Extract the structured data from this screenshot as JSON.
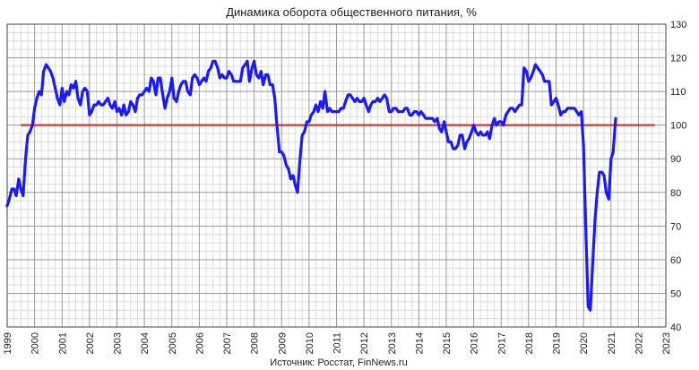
{
  "chart_data": {
    "type": "line",
    "title": "Динамика оборота общественного питания, %",
    "source": "Источник: Росстат, FinNews.ru",
    "xlabel": "",
    "ylabel": "",
    "xlim": [
      1999,
      2023
    ],
    "ylim": [
      40,
      130
    ],
    "x_ticks": [
      "1999",
      "2000",
      "2001",
      "2002",
      "2003",
      "2004",
      "2005",
      "2006",
      "2007",
      "2008",
      "2009",
      "2010",
      "2011",
      "2012",
      "2013",
      "2014",
      "2015",
      "2016",
      "2017",
      "2018",
      "2019",
      "2020",
      "2021",
      "2022",
      "2023"
    ],
    "y_ticks": [
      "40",
      "50",
      "60",
      "70",
      "80",
      "90",
      "100",
      "110",
      "120",
      "130"
    ],
    "grid": true,
    "legend": "none",
    "reference_line": {
      "y": 100,
      "x_from": 1999.5,
      "x_to": 2022.6,
      "color": "#d62020"
    },
    "series": [
      {
        "color": "#1a1aff",
        "points": [
          [
            1999.0,
            76
          ],
          [
            1999.08,
            78
          ],
          [
            1999.17,
            81
          ],
          [
            1999.25,
            81
          ],
          [
            1999.33,
            79
          ],
          [
            1999.42,
            84
          ],
          [
            1999.5,
            81
          ],
          [
            1999.58,
            79
          ],
          [
            1999.67,
            90
          ],
          [
            1999.75,
            97
          ],
          [
            1999.83,
            98
          ],
          [
            1999.92,
            100
          ],
          [
            2000.0,
            105
          ],
          [
            2000.08,
            108
          ],
          [
            2000.17,
            110
          ],
          [
            2000.25,
            109
          ],
          [
            2000.33,
            116
          ],
          [
            2000.42,
            118
          ],
          [
            2000.5,
            117
          ],
          [
            2000.58,
            116
          ],
          [
            2000.67,
            114
          ],
          [
            2000.75,
            111
          ],
          [
            2000.83,
            108
          ],
          [
            2000.92,
            106
          ],
          [
            2001.0,
            111
          ],
          [
            2001.08,
            107
          ],
          [
            2001.17,
            110
          ],
          [
            2001.25,
            109
          ],
          [
            2001.33,
            112
          ],
          [
            2001.42,
            111
          ],
          [
            2001.5,
            113
          ],
          [
            2001.58,
            108
          ],
          [
            2001.67,
            106
          ],
          [
            2001.75,
            110
          ],
          [
            2001.83,
            111
          ],
          [
            2001.92,
            110
          ],
          [
            2002.0,
            103
          ],
          [
            2002.08,
            104
          ],
          [
            2002.17,
            106
          ],
          [
            2002.25,
            106
          ],
          [
            2002.33,
            107
          ],
          [
            2002.42,
            106
          ],
          [
            2002.5,
            106
          ],
          [
            2002.58,
            107
          ],
          [
            2002.67,
            108
          ],
          [
            2002.75,
            106
          ],
          [
            2002.83,
            105
          ],
          [
            2002.92,
            107
          ],
          [
            2003.0,
            104
          ],
          [
            2003.08,
            105
          ],
          [
            2003.17,
            103
          ],
          [
            2003.25,
            106
          ],
          [
            2003.33,
            103
          ],
          [
            2003.42,
            104
          ],
          [
            2003.5,
            107
          ],
          [
            2003.58,
            106
          ],
          [
            2003.67,
            104
          ],
          [
            2003.75,
            108
          ],
          [
            2003.83,
            109
          ],
          [
            2003.92,
            109
          ],
          [
            2004.0,
            110
          ],
          [
            2004.08,
            111
          ],
          [
            2004.17,
            110
          ],
          [
            2004.25,
            114
          ],
          [
            2004.33,
            113
          ],
          [
            2004.42,
            109
          ],
          [
            2004.5,
            114
          ],
          [
            2004.58,
            114
          ],
          [
            2004.67,
            109
          ],
          [
            2004.75,
            105
          ],
          [
            2004.83,
            108
          ],
          [
            2004.92,
            110
          ],
          [
            2005.0,
            114
          ],
          [
            2005.08,
            108
          ],
          [
            2005.17,
            107
          ],
          [
            2005.25,
            110
          ],
          [
            2005.33,
            112
          ],
          [
            2005.42,
            113
          ],
          [
            2005.5,
            113
          ],
          [
            2005.58,
            110
          ],
          [
            2005.67,
            109
          ],
          [
            2005.75,
            114
          ],
          [
            2005.83,
            115
          ],
          [
            2005.92,
            114
          ],
          [
            2006.0,
            112
          ],
          [
            2006.08,
            113
          ],
          [
            2006.17,
            114
          ],
          [
            2006.25,
            113
          ],
          [
            2006.33,
            116
          ],
          [
            2006.42,
            117
          ],
          [
            2006.5,
            119
          ],
          [
            2006.58,
            119
          ],
          [
            2006.67,
            117
          ],
          [
            2006.75,
            114
          ],
          [
            2006.83,
            115
          ],
          [
            2006.92,
            114
          ],
          [
            2007.0,
            114
          ],
          [
            2007.08,
            116
          ],
          [
            2007.17,
            115
          ],
          [
            2007.25,
            113
          ],
          [
            2007.33,
            113
          ],
          [
            2007.42,
            113
          ],
          [
            2007.5,
            113
          ],
          [
            2007.58,
            117
          ],
          [
            2007.67,
            118
          ],
          [
            2007.75,
            119
          ],
          [
            2007.83,
            113
          ],
          [
            2007.92,
            117
          ],
          [
            2008.0,
            119
          ],
          [
            2008.08,
            115
          ],
          [
            2008.17,
            114
          ],
          [
            2008.25,
            116
          ],
          [
            2008.33,
            112
          ],
          [
            2008.42,
            115
          ],
          [
            2008.5,
            115
          ],
          [
            2008.58,
            112
          ],
          [
            2008.67,
            112
          ],
          [
            2008.75,
            108
          ],
          [
            2008.83,
            100
          ],
          [
            2008.92,
            92
          ],
          [
            2009.0,
            92
          ],
          [
            2009.08,
            91
          ],
          [
            2009.17,
            88
          ],
          [
            2009.25,
            87
          ],
          [
            2009.33,
            84
          ],
          [
            2009.42,
            85
          ],
          [
            2009.5,
            82
          ],
          [
            2009.58,
            80
          ],
          [
            2009.67,
            90
          ],
          [
            2009.75,
            97
          ],
          [
            2009.83,
            98
          ],
          [
            2009.92,
            101
          ],
          [
            2010.0,
            101
          ],
          [
            2010.08,
            103
          ],
          [
            2010.17,
            104
          ],
          [
            2010.25,
            106
          ],
          [
            2010.33,
            104
          ],
          [
            2010.42,
            107
          ],
          [
            2010.5,
            105
          ],
          [
            2010.58,
            110
          ],
          [
            2010.67,
            104
          ],
          [
            2010.75,
            105
          ],
          [
            2010.83,
            104
          ],
          [
            2010.92,
            104
          ],
          [
            2011.0,
            104
          ],
          [
            2011.08,
            104
          ],
          [
            2011.17,
            105
          ],
          [
            2011.25,
            105
          ],
          [
            2011.33,
            107
          ],
          [
            2011.42,
            109
          ],
          [
            2011.5,
            109
          ],
          [
            2011.58,
            108
          ],
          [
            2011.67,
            107
          ],
          [
            2011.75,
            108
          ],
          [
            2011.83,
            107
          ],
          [
            2011.92,
            107
          ],
          [
            2012.0,
            108
          ],
          [
            2012.08,
            106
          ],
          [
            2012.17,
            104
          ],
          [
            2012.25,
            106
          ],
          [
            2012.33,
            107
          ],
          [
            2012.42,
            107
          ],
          [
            2012.5,
            108
          ],
          [
            2012.58,
            107
          ],
          [
            2012.67,
            108
          ],
          [
            2012.75,
            109
          ],
          [
            2012.83,
            108
          ],
          [
            2012.92,
            104
          ],
          [
            2013.0,
            104
          ],
          [
            2013.08,
            105
          ],
          [
            2013.17,
            105
          ],
          [
            2013.25,
            104
          ],
          [
            2013.33,
            104
          ],
          [
            2013.42,
            104
          ],
          [
            2013.5,
            105
          ],
          [
            2013.58,
            105
          ],
          [
            2013.67,
            103
          ],
          [
            2013.75,
            103
          ],
          [
            2013.83,
            104
          ],
          [
            2013.92,
            104
          ],
          [
            2014.0,
            103
          ],
          [
            2014.08,
            104
          ],
          [
            2014.17,
            103
          ],
          [
            2014.25,
            102
          ],
          [
            2014.33,
            102
          ],
          [
            2014.42,
            102
          ],
          [
            2014.5,
            102
          ],
          [
            2014.58,
            101
          ],
          [
            2014.67,
            102
          ],
          [
            2014.75,
            99
          ],
          [
            2014.83,
            98
          ],
          [
            2014.92,
            101
          ],
          [
            2015.0,
            98
          ],
          [
            2015.08,
            95
          ],
          [
            2015.17,
            95
          ],
          [
            2015.25,
            93
          ],
          [
            2015.33,
            93
          ],
          [
            2015.42,
            94
          ],
          [
            2015.5,
            97
          ],
          [
            2015.58,
            97
          ],
          [
            2015.67,
            93
          ],
          [
            2015.75,
            95
          ],
          [
            2015.83,
            96
          ],
          [
            2015.92,
            98
          ],
          [
            2016.0,
            100
          ],
          [
            2016.08,
            98
          ],
          [
            2016.17,
            97
          ],
          [
            2016.25,
            98
          ],
          [
            2016.33,
            97
          ],
          [
            2016.42,
            97
          ],
          [
            2016.5,
            98
          ],
          [
            2016.58,
            96
          ],
          [
            2016.67,
            100
          ],
          [
            2016.75,
            102
          ],
          [
            2016.83,
            100
          ],
          [
            2016.92,
            101
          ],
          [
            2017.0,
            101
          ],
          [
            2017.08,
            100
          ],
          [
            2017.17,
            103
          ],
          [
            2017.25,
            104
          ],
          [
            2017.33,
            105
          ],
          [
            2017.42,
            105
          ],
          [
            2017.5,
            104
          ],
          [
            2017.58,
            105
          ],
          [
            2017.67,
            106
          ],
          [
            2017.75,
            106
          ],
          [
            2017.83,
            117
          ],
          [
            2017.92,
            116
          ],
          [
            2018.0,
            113
          ],
          [
            2018.08,
            114
          ],
          [
            2018.17,
            116
          ],
          [
            2018.25,
            118
          ],
          [
            2018.33,
            117
          ],
          [
            2018.42,
            116
          ],
          [
            2018.5,
            115
          ],
          [
            2018.58,
            113
          ],
          [
            2018.67,
            113
          ],
          [
            2018.75,
            113
          ],
          [
            2018.83,
            106
          ],
          [
            2018.92,
            107
          ],
          [
            2019.0,
            108
          ],
          [
            2019.08,
            106
          ],
          [
            2019.17,
            103
          ],
          [
            2019.25,
            104
          ],
          [
            2019.33,
            104
          ],
          [
            2019.42,
            105
          ],
          [
            2019.5,
            105
          ],
          [
            2019.58,
            105
          ],
          [
            2019.67,
            105
          ],
          [
            2019.75,
            104
          ],
          [
            2019.83,
            103
          ],
          [
            2019.92,
            104
          ],
          [
            2020.0,
            94
          ],
          [
            2020.08,
            70
          ],
          [
            2020.17,
            46
          ],
          [
            2020.25,
            45
          ],
          [
            2020.33,
            58
          ],
          [
            2020.42,
            72
          ],
          [
            2020.5,
            80
          ],
          [
            2020.58,
            86
          ],
          [
            2020.67,
            86
          ],
          [
            2020.75,
            85
          ],
          [
            2020.83,
            80
          ],
          [
            2020.92,
            78
          ],
          [
            2021.0,
            90
          ],
          [
            2021.08,
            92
          ],
          [
            2021.17,
            102
          ]
        ]
      }
    ]
  }
}
